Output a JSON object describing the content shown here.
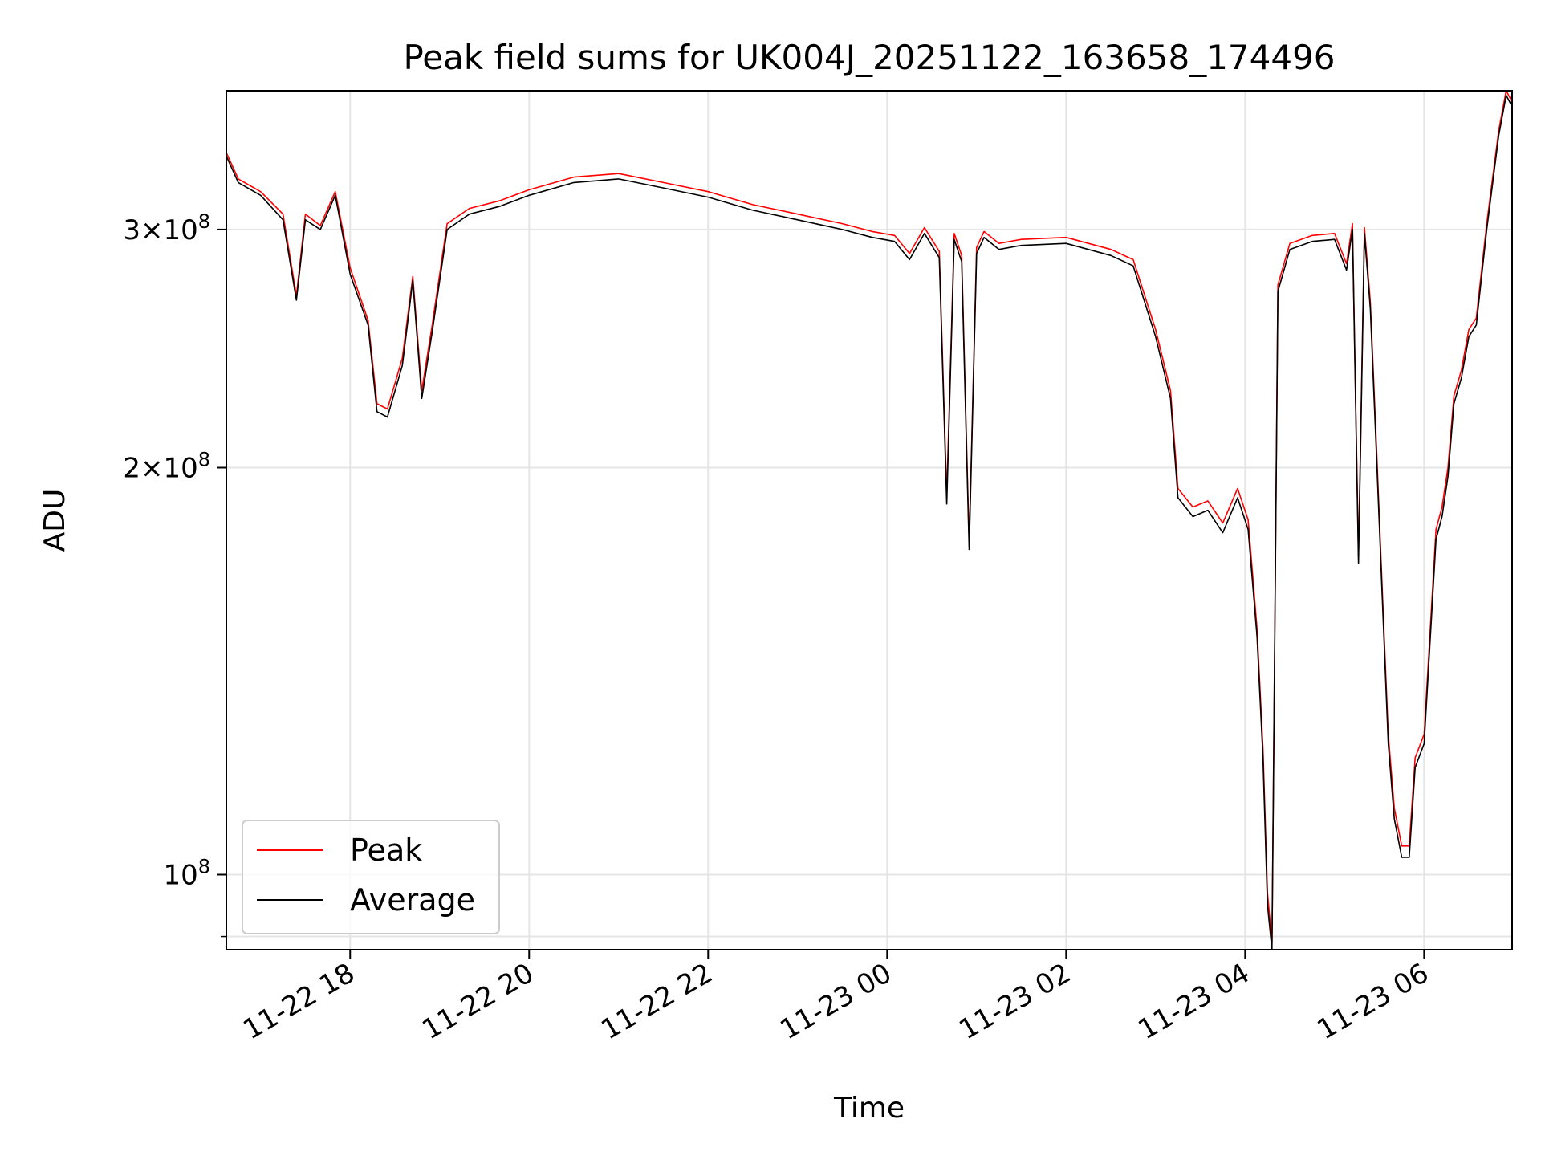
{
  "chart_data": {
    "type": "line",
    "title": "Peak field sums for UK004J_20251122_163658_174496",
    "xlabel": "Time",
    "ylabel": "ADU",
    "y_scale": "log",
    "ylim": [
      88000000,
      380000000
    ],
    "xlim": [
      "2025-11-22 16:37",
      "2025-11-23 06:59"
    ],
    "grid": true,
    "legend_position": "lower-left",
    "x_ticks": [
      {
        "value": "2025-11-22 18:00",
        "label": "11-22 18"
      },
      {
        "value": "2025-11-22 20:00",
        "label": "11-22 20"
      },
      {
        "value": "2025-11-22 22:00",
        "label": "11-22 22"
      },
      {
        "value": "2025-11-23 00:00",
        "label": "11-23 00"
      },
      {
        "value": "2025-11-23 02:00",
        "label": "11-23 02"
      },
      {
        "value": "2025-11-23 04:00",
        "label": "11-23 04"
      },
      {
        "value": "2025-11-23 06:00",
        "label": "11-23 06"
      }
    ],
    "y_ticks": [
      {
        "value": 300000000,
        "base": "3×10",
        "exp": "8"
      },
      {
        "value": 200000000,
        "base": "2×10",
        "exp": "8"
      },
      {
        "value": 100000000,
        "base": "10",
        "exp": "8"
      }
    ],
    "y_minor_ticks": [
      90000000
    ],
    "series": [
      {
        "name": "Peak",
        "color": "#ff0000"
      },
      {
        "name": "Average",
        "color": "#000000"
      }
    ],
    "x": [
      "2025-11-22 16:37",
      "2025-11-22 16:45",
      "2025-11-22 17:00",
      "2025-11-22 17:15",
      "2025-11-22 17:24",
      "2025-11-22 17:30",
      "2025-11-22 17:40",
      "2025-11-22 17:50",
      "2025-11-22 18:00",
      "2025-11-22 18:12",
      "2025-11-22 18:18",
      "2025-11-22 18:25",
      "2025-11-22 18:35",
      "2025-11-22 18:42",
      "2025-11-22 18:48",
      "2025-11-22 18:55",
      "2025-11-22 19:05",
      "2025-11-22 19:20",
      "2025-11-22 19:40",
      "2025-11-22 20:00",
      "2025-11-22 20:30",
      "2025-11-22 21:00",
      "2025-11-22 21:30",
      "2025-11-22 22:00",
      "2025-11-22 22:30",
      "2025-11-22 23:00",
      "2025-11-22 23:30",
      "2025-11-22 23:50",
      "2025-11-23 00:05",
      "2025-11-23 00:15",
      "2025-11-23 00:25",
      "2025-11-23 00:35",
      "2025-11-23 00:40",
      "2025-11-23 00:45",
      "2025-11-23 00:50",
      "2025-11-23 00:55",
      "2025-11-23 01:00",
      "2025-11-23 01:05",
      "2025-11-23 01:15",
      "2025-11-23 01:30",
      "2025-11-23 02:00",
      "2025-11-23 02:30",
      "2025-11-23 02:45",
      "2025-11-23 03:00",
      "2025-11-23 03:10",
      "2025-11-23 03:15",
      "2025-11-23 03:25",
      "2025-11-23 03:35",
      "2025-11-23 03:45",
      "2025-11-23 03:55",
      "2025-11-23 04:02",
      "2025-11-23 04:08",
      "2025-11-23 04:12",
      "2025-11-23 04:15",
      "2025-11-23 04:18",
      "2025-11-23 04:22",
      "2025-11-23 04:30",
      "2025-11-23 04:45",
      "2025-11-23 05:00",
      "2025-11-23 05:08",
      "2025-11-23 05:12",
      "2025-11-23 05:16",
      "2025-11-23 05:20",
      "2025-11-23 05:24",
      "2025-11-23 05:28",
      "2025-11-23 05:32",
      "2025-11-23 05:36",
      "2025-11-23 05:40",
      "2025-11-23 05:45",
      "2025-11-23 05:50",
      "2025-11-23 05:54",
      "2025-11-23 06:00",
      "2025-11-23 06:08",
      "2025-11-23 06:12",
      "2025-11-23 06:16",
      "2025-11-23 06:20",
      "2025-11-23 06:25",
      "2025-11-23 06:30",
      "2025-11-23 06:35",
      "2025-11-23 06:42",
      "2025-11-23 06:50",
      "2025-11-23 06:55",
      "2025-11-23 06:59"
    ],
    "average": [
      340000000,
      325000000,
      318000000,
      305000000,
      266000000,
      305000000,
      300000000,
      318000000,
      278000000,
      255000000,
      220000000,
      218000000,
      238000000,
      275000000,
      225000000,
      252000000,
      300000000,
      308000000,
      312000000,
      318000000,
      325000000,
      327000000,
      322000000,
      317000000,
      310000000,
      305000000,
      300000000,
      296000000,
      294000000,
      285000000,
      298000000,
      286000000,
      188000000,
      295000000,
      284000000,
      174000000,
      288000000,
      296000000,
      290000000,
      292000000,
      293000000,
      287000000,
      282000000,
      250000000,
      225000000,
      190000000,
      184000000,
      186000000,
      179000000,
      190000000,
      180000000,
      150000000,
      122000000,
      95000000,
      88000000,
      270000000,
      290000000,
      294000000,
      295000000,
      280000000,
      300000000,
      170000000,
      298000000,
      262000000,
      205000000,
      160000000,
      125000000,
      110000000,
      103000000,
      103000000,
      120000000,
      125000000,
      177000000,
      184000000,
      197000000,
      223000000,
      233000000,
      250000000,
      255000000,
      300000000,
      352000000,
      377000000,
      370000000
    ],
    "peak": [
      342000000,
      327000000,
      320000000,
      308000000,
      268000000,
      308000000,
      302000000,
      320000000,
      281000000,
      257000000,
      223000000,
      221000000,
      241000000,
      277000000,
      228000000,
      255000000,
      303000000,
      311000000,
      315000000,
      321000000,
      328000000,
      330000000,
      325000000,
      320000000,
      313000000,
      308000000,
      303000000,
      299000000,
      297000000,
      288000000,
      301000000,
      289000000,
      191000000,
      298000000,
      287000000,
      176000000,
      291000000,
      299000000,
      293000000,
      295000000,
      296000000,
      290000000,
      285000000,
      253000000,
      228000000,
      193000000,
      187000000,
      189000000,
      182000000,
      193000000,
      183000000,
      152000000,
      124000000,
      97000000,
      89000000,
      273000000,
      293000000,
      297000000,
      298000000,
      283000000,
      303000000,
      172000000,
      301000000,
      265000000,
      208000000,
      162000000,
      127000000,
      112000000,
      105000000,
      105000000,
      122000000,
      127000000,
      180000000,
      187000000,
      200000000,
      226000000,
      236000000,
      253000000,
      258000000,
      303000000,
      355000000,
      380000000,
      373000000
    ]
  }
}
